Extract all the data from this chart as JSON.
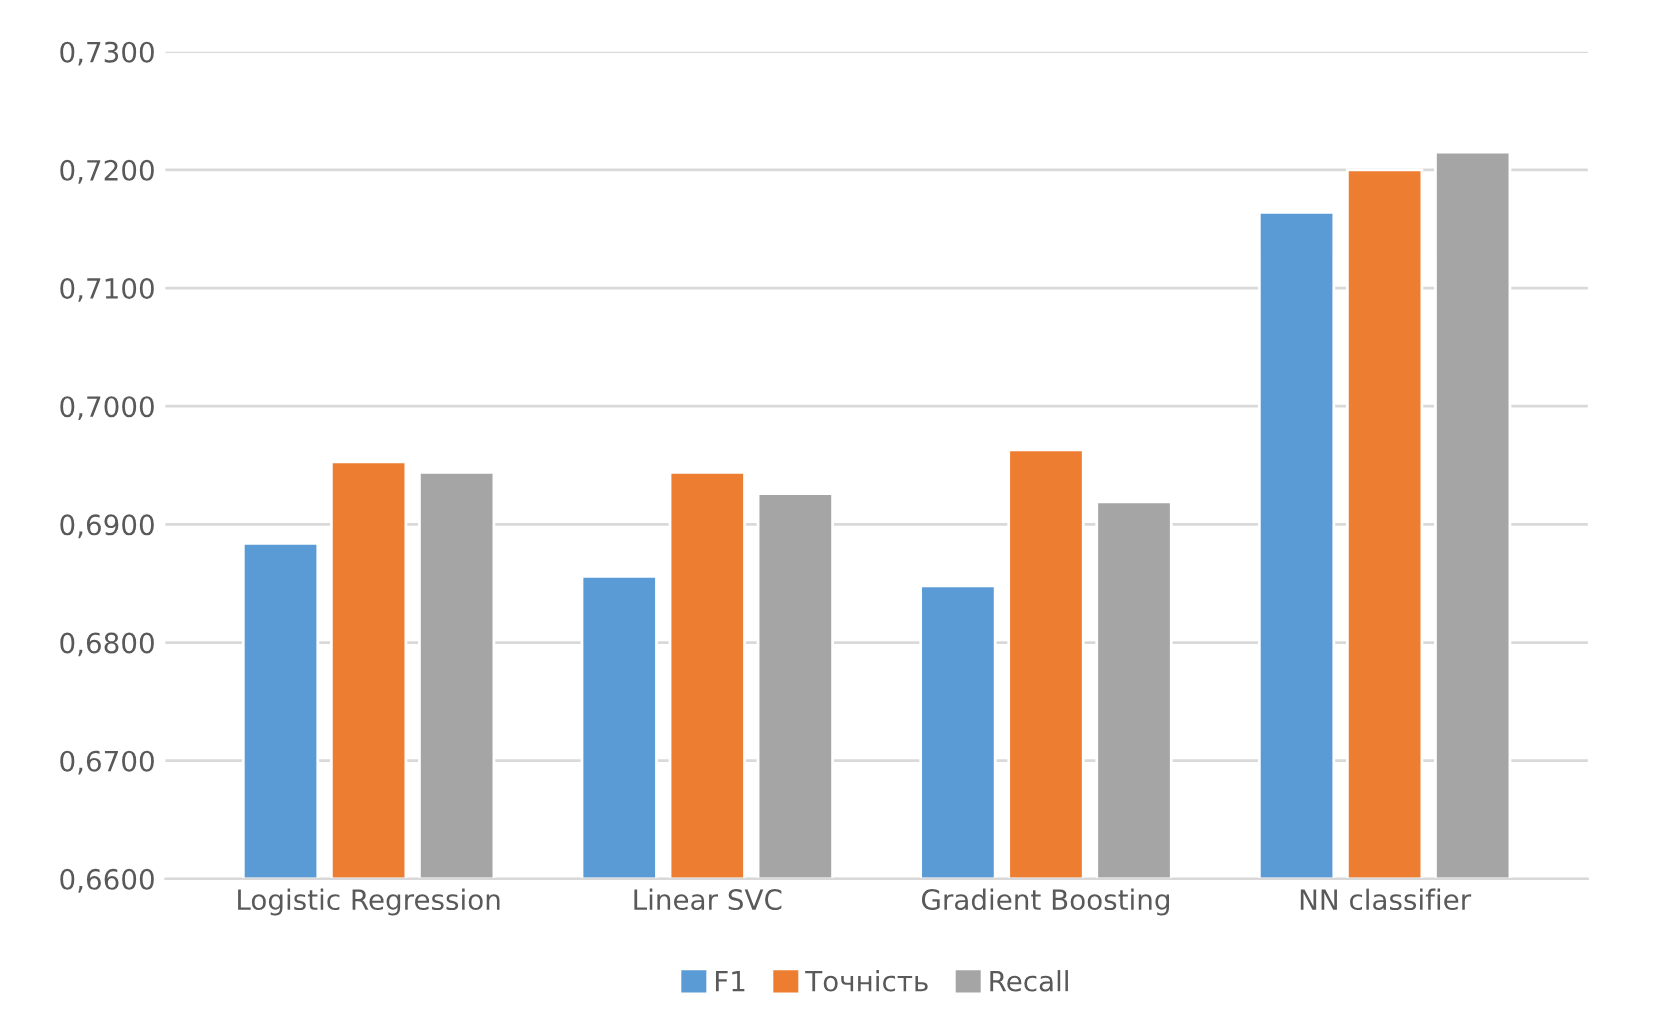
{
  "chart_data": {
    "type": "bar",
    "categories": [
      "Logistic Regression",
      "Linear SVC",
      "Gradient Boosting",
      "NN classifier"
    ],
    "series": [
      {
        "name": "F1",
        "color": "#5b9bd5",
        "values": [
          0.6884,
          0.6856,
          0.6848,
          0.7164
        ]
      },
      {
        "name": "Точність",
        "color": "#ed7d31",
        "values": [
          0.6953,
          0.6944,
          0.6963,
          0.72
        ]
      },
      {
        "name": "Recall",
        "color": "#a5a5a5",
        "values": [
          0.6944,
          0.6926,
          0.6919,
          0.7215
        ]
      }
    ],
    "ylim": [
      0.66,
      0.73
    ],
    "yticks": [
      {
        "value": 0.66,
        "label": "0,6600"
      },
      {
        "value": 0.67,
        "label": "0,6700"
      },
      {
        "value": 0.68,
        "label": "0,6800"
      },
      {
        "value": 0.69,
        "label": "0,6900"
      },
      {
        "value": 0.7,
        "label": "0,7000"
      },
      {
        "value": 0.71,
        "label": "0,7100"
      },
      {
        "value": 0.72,
        "label": "0,7200"
      },
      {
        "value": 0.73,
        "label": "0,7300"
      }
    ],
    "grid": "y",
    "legend": "bottom"
  }
}
